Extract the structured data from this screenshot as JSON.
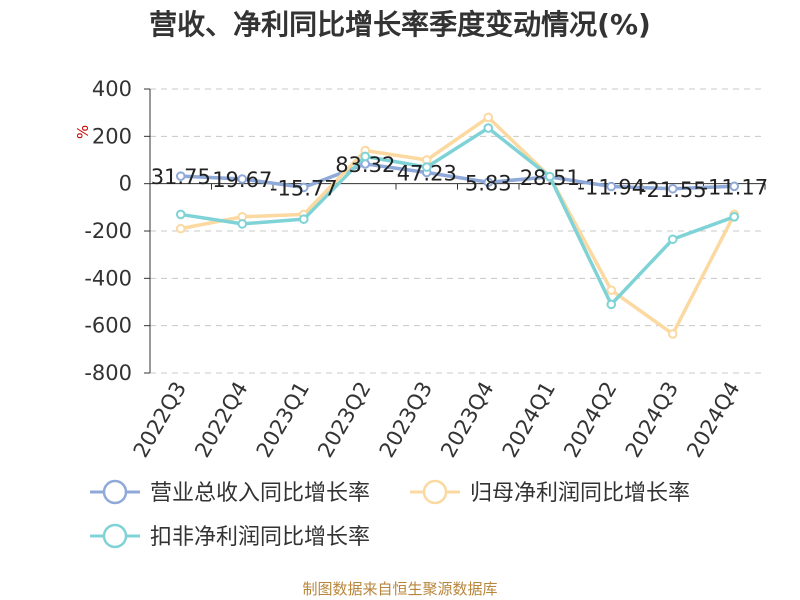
{
  "chart_data": {
    "type": "line",
    "title": "营收、净利同比增长率季度变动情况(%)",
    "ylabel": "%",
    "xlabel": "",
    "categories": [
      "2022Q3",
      "2022Q4",
      "2023Q1",
      "2023Q2",
      "2023Q3",
      "2023Q4",
      "2024Q1",
      "2024Q2",
      "2024Q3",
      "2024Q4"
    ],
    "yticks": [
      400,
      200,
      0,
      -200,
      -400,
      -600,
      -800
    ],
    "ylim": [
      -800,
      400
    ],
    "grid": true,
    "legend_position": "bottom",
    "series": [
      {
        "name": "营业总收入同比增长率",
        "color": "#8fa9d8",
        "values": [
          31.75,
          19.67,
          -15.77,
          83.32,
          47.23,
          5.83,
          28.51,
          -11.94,
          -21.55,
          -11.17
        ],
        "labels": [
          "31.75",
          "19.67",
          "-15.77",
          "83.32",
          "47.23",
          "5.83",
          "28.51",
          "-11.94",
          "-21.55",
          "-11.17"
        ]
      },
      {
        "name": "归母净利润同比增长率",
        "color": "#fbd9a0",
        "values": [
          -190,
          -140,
          -130,
          140,
          100,
          280,
          30,
          -450,
          -635,
          -130
        ]
      },
      {
        "name": "扣非净利润同比增长率",
        "color": "#7fd3d6",
        "values": [
          -130,
          -170,
          -150,
          115,
          70,
          235,
          30,
          -510,
          -235,
          -140
        ]
      }
    ]
  },
  "source": "制图数据来自恒生聚源数据库"
}
